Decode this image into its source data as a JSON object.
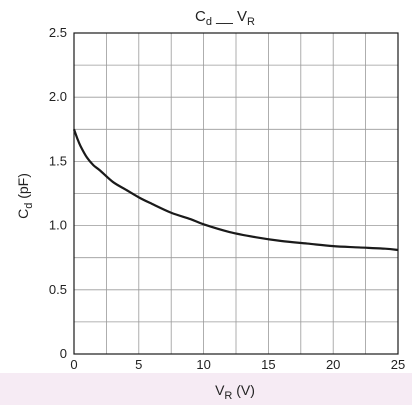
{
  "chart_data": {
    "type": "line",
    "title": "C",
    "title_sub": "d",
    "title_mid": " __ ",
    "title_v": "V",
    "title_v_sub": "R",
    "xlabel": "V",
    "xlabel_sub": "R",
    "xlabel_unit": " (V)",
    "ylabel": "C",
    "ylabel_sub": "d",
    "ylabel_unit": " (pF)",
    "xlim": [
      0,
      25
    ],
    "ylim": [
      0,
      2.5
    ],
    "x_ticks": [
      0,
      5,
      10,
      15,
      20,
      25
    ],
    "x_tick_labels": [
      "0",
      "5",
      "10",
      "15",
      "20",
      "25"
    ],
    "y_ticks": [
      0,
      0.5,
      1.0,
      1.5,
      2.0,
      2.5
    ],
    "y_tick_labels": [
      "0",
      "0.5",
      "1.0",
      "1.5",
      "2.0",
      "2.5"
    ],
    "grid": true,
    "x_minor_step": 2.5,
    "y_minor_step": 0.25,
    "series": [
      {
        "x": [
          0,
          0.25,
          0.5,
          1,
          1.5,
          2,
          3,
          4,
          5,
          6,
          7.5,
          9,
          10,
          12,
          14,
          16,
          18,
          20,
          22,
          24,
          25
        ],
        "y": [
          1.75,
          1.68,
          1.62,
          1.53,
          1.47,
          1.43,
          1.34,
          1.28,
          1.22,
          1.17,
          1.1,
          1.05,
          1.01,
          0.95,
          0.91,
          0.88,
          0.86,
          0.84,
          0.83,
          0.82,
          0.81
        ]
      }
    ],
    "colors": {
      "line": "#1a1a1a",
      "grid": "#9a9a9a",
      "frame": "#1a1a1a"
    }
  }
}
